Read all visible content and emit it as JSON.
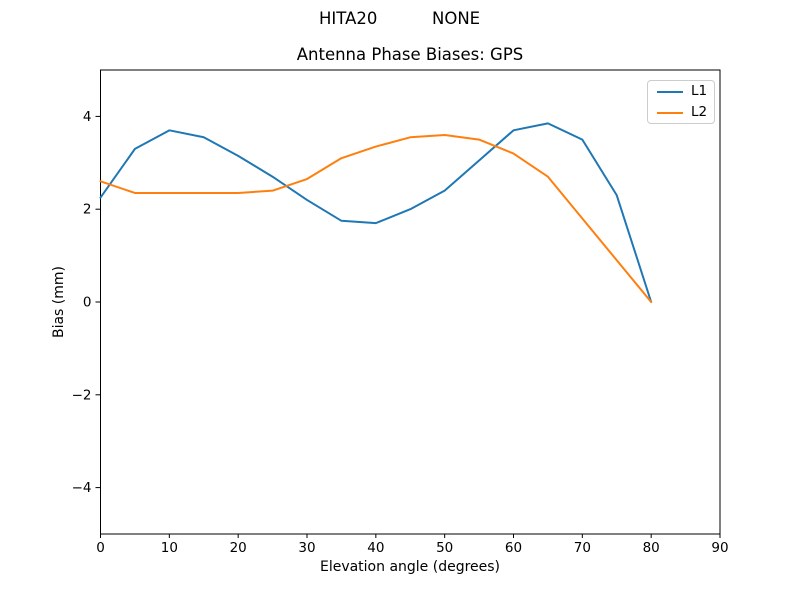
{
  "header": {
    "station": "HITA20",
    "qualifier": "NONE"
  },
  "chart_data": {
    "type": "line",
    "title": "Antenna Phase Biases: GPS",
    "xlabel": "Elevation angle (degrees)",
    "ylabel": "Bias (mm)",
    "xlim": [
      0,
      90
    ],
    "ylim": [
      -5,
      5
    ],
    "xticks": [
      0,
      10,
      20,
      30,
      40,
      50,
      60,
      70,
      80,
      90
    ],
    "yticks": [
      {
        "value": -4,
        "label": "−4"
      },
      {
        "value": -2,
        "label": "−2"
      },
      {
        "value": 0,
        "label": "0"
      },
      {
        "value": 2,
        "label": "2"
      },
      {
        "value": 4,
        "label": "4"
      }
    ],
    "grid": false,
    "legend_position": "upper right",
    "x": [
      0,
      5,
      10,
      15,
      20,
      25,
      30,
      35,
      40,
      45,
      50,
      55,
      60,
      65,
      70,
      75,
      80
    ],
    "series": [
      {
        "name": "L1",
        "color": "#1f77b4",
        "values": [
          2.25,
          3.3,
          3.7,
          3.55,
          3.15,
          2.7,
          2.2,
          1.75,
          1.7,
          2.0,
          2.4,
          3.05,
          3.7,
          3.85,
          3.5,
          2.3,
          0.0
        ]
      },
      {
        "name": "L2",
        "color": "#ff7f0e",
        "values": [
          2.6,
          2.35,
          2.35,
          2.35,
          2.35,
          2.4,
          2.65,
          3.1,
          3.35,
          3.55,
          3.6,
          3.5,
          3.2,
          2.7,
          1.8,
          0.9,
          0.0
        ]
      }
    ]
  }
}
